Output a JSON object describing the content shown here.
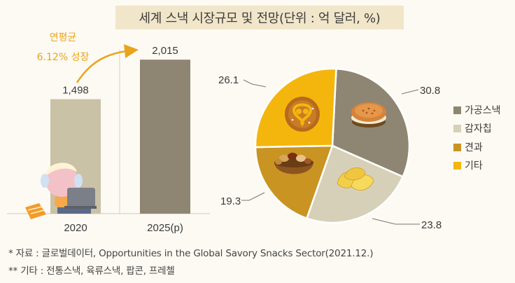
{
  "title": "세계 스낵 시장규모 및 전망(단위 : 억 달러, %)",
  "colors": {
    "bar_2020": "#c9c2a7",
    "bar_2025": "#8e8672",
    "processed": "#8e8672",
    "potato": "#d6d0b8",
    "nuts": "#c99422",
    "other": "#f4b60d",
    "growth_text": "#e9a41c",
    "background": "#fdfaf3"
  },
  "chart_data": [
    {
      "type": "bar",
      "categories": [
        "2020",
        "2025(p)"
      ],
      "values": [
        1498,
        2015
      ],
      "value_labels": [
        "1,498",
        "2,015"
      ],
      "annotation": {
        "line1": "연평균",
        "line2": "6.12% 성장"
      },
      "ylim": [
        0,
        2200
      ],
      "grid": false
    },
    {
      "type": "pie",
      "labels": [
        "가공스낵",
        "감자칩",
        "견과",
        "기타"
      ],
      "values": [
        30.8,
        23.8,
        19.3,
        26.1
      ],
      "value_labels": [
        "30.8",
        "23.8",
        "19.3",
        "26.1"
      ],
      "legend_position": "right",
      "icons": [
        "sandwich-cracker-icon",
        "potato-chip-icon",
        "nut-bowl-icon",
        "pretzel-icon"
      ]
    }
  ],
  "source": {
    "line1": "* 자료 : 글로벌데이터, Opportunities in the Global Savory Snacks Sector(2021.12.)",
    "line2": "** 기타 : 전통스낵, 육류스낵, 팝콘, 프레첼"
  }
}
